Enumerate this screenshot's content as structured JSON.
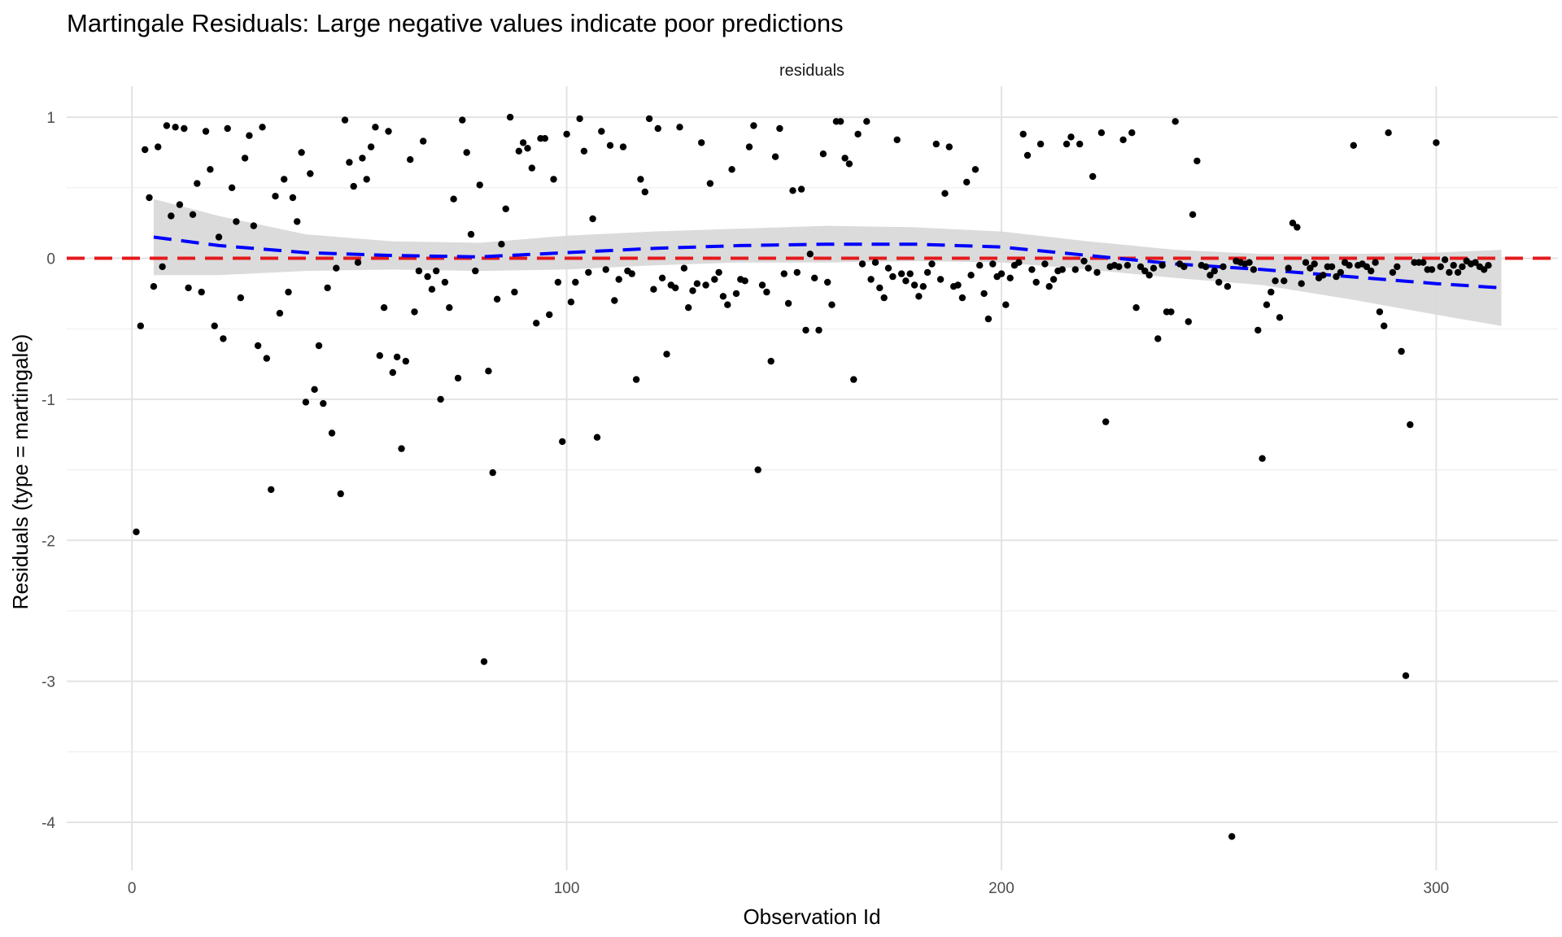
{
  "chart_data": {
    "type": "scatter",
    "title": "Martingale Residuals: Large negative values indicate poor predictions",
    "facet_label": "residuals",
    "xlabel": "Observation Id",
    "ylabel": "Residuals (type = martingale)",
    "xlim": [
      -15,
      328
    ],
    "ylim": [
      -4.34,
      1.22
    ],
    "x_ticks": [
      0,
      100,
      200,
      300
    ],
    "y_ticks": [
      1,
      0,
      -1,
      -2,
      -3,
      -4
    ],
    "x_tick_labels": [
      "0",
      "100",
      "200",
      "300"
    ],
    "y_tick_labels": [
      "1",
      "0",
      "-1",
      "-2",
      "-3",
      "-4"
    ],
    "grid": true,
    "reference_line": {
      "y": 0,
      "color": "#e41a1c",
      "style": "dashed"
    },
    "smooth": {
      "color": "#0000ff",
      "style": "dashed",
      "band_color": "#d9d9d9",
      "fit": [
        [
          5,
          0.15
        ],
        [
          20,
          0.09
        ],
        [
          40,
          0.04
        ],
        [
          60,
          0.02
        ],
        [
          80,
          0.01
        ],
        [
          100,
          0.04
        ],
        [
          120,
          0.07
        ],
        [
          140,
          0.09
        ],
        [
          160,
          0.1
        ],
        [
          180,
          0.1
        ],
        [
          200,
          0.08
        ],
        [
          220,
          0.02
        ],
        [
          240,
          -0.04
        ],
        [
          260,
          -0.08
        ],
        [
          280,
          -0.13
        ],
        [
          300,
          -0.18
        ],
        [
          315,
          -0.21
        ]
      ],
      "upper": [
        [
          5,
          0.42
        ],
        [
          20,
          0.3
        ],
        [
          40,
          0.17
        ],
        [
          60,
          0.12
        ],
        [
          80,
          0.11
        ],
        [
          100,
          0.16
        ],
        [
          120,
          0.19
        ],
        [
          140,
          0.21
        ],
        [
          160,
          0.23
        ],
        [
          180,
          0.22
        ],
        [
          200,
          0.19
        ],
        [
          220,
          0.12
        ],
        [
          240,
          0.06
        ],
        [
          260,
          0.03
        ],
        [
          280,
          0.03
        ],
        [
          300,
          0.04
        ],
        [
          315,
          0.06
        ]
      ],
      "lower": [
        [
          5,
          -0.12
        ],
        [
          20,
          -0.12
        ],
        [
          40,
          -0.09
        ],
        [
          60,
          -0.08
        ],
        [
          80,
          -0.09
        ],
        [
          100,
          -0.08
        ],
        [
          120,
          -0.05
        ],
        [
          140,
          -0.03
        ],
        [
          160,
          -0.03
        ],
        [
          180,
          -0.02
        ],
        [
          200,
          -0.03
        ],
        [
          220,
          -0.08
        ],
        [
          240,
          -0.14
        ],
        [
          260,
          -0.19
        ],
        [
          280,
          -0.29
        ],
        [
          300,
          -0.4
        ],
        [
          315,
          -0.48
        ]
      ]
    },
    "points": [
      [
        1,
        -1.94
      ],
      [
        2,
        -0.48
      ],
      [
        3,
        0.77
      ],
      [
        4,
        0.43
      ],
      [
        5,
        -0.2
      ],
      [
        6,
        0.79
      ],
      [
        7,
        -0.06
      ],
      [
        8,
        0.94
      ],
      [
        9,
        0.3
      ],
      [
        10,
        0.93
      ],
      [
        11,
        0.38
      ],
      [
        12,
        0.92
      ],
      [
        13,
        -0.21
      ],
      [
        14,
        0.31
      ],
      [
        15,
        0.53
      ],
      [
        16,
        -0.24
      ],
      [
        17,
        0.9
      ],
      [
        18,
        0.63
      ],
      [
        19,
        -0.48
      ],
      [
        20,
        0.15
      ],
      [
        21,
        -0.57
      ],
      [
        22,
        0.92
      ],
      [
        23,
        0.5
      ],
      [
        24,
        0.26
      ],
      [
        25,
        -0.28
      ],
      [
        26,
        0.71
      ],
      [
        27,
        0.87
      ],
      [
        28,
        0.23
      ],
      [
        29,
        -0.62
      ],
      [
        30,
        0.93
      ],
      [
        31,
        -0.71
      ],
      [
        32,
        -1.64
      ],
      [
        33,
        0.44
      ],
      [
        34,
        -0.39
      ],
      [
        35,
        0.56
      ],
      [
        36,
        -0.24
      ],
      [
        37,
        0.43
      ],
      [
        38,
        0.26
      ],
      [
        39,
        0.75
      ],
      [
        40,
        -1.02
      ],
      [
        41,
        0.6
      ],
      [
        42,
        -0.93
      ],
      [
        43,
        -0.62
      ],
      [
        44,
        -1.03
      ],
      [
        45,
        -0.21
      ],
      [
        46,
        -1.24
      ],
      [
        47,
        -0.07
      ],
      [
        48,
        -1.67
      ],
      [
        49,
        0.98
      ],
      [
        50,
        0.68
      ],
      [
        51,
        0.51
      ],
      [
        52,
        -0.03
      ],
      [
        53,
        0.71
      ],
      [
        54,
        0.56
      ],
      [
        55,
        0.79
      ],
      [
        56,
        0.93
      ],
      [
        57,
        -0.69
      ],
      [
        58,
        -0.35
      ],
      [
        59,
        0.9
      ],
      [
        60,
        -0.81
      ],
      [
        61,
        -0.7
      ],
      [
        62,
        -1.35
      ],
      [
        63,
        -0.73
      ],
      [
        64,
        0.7
      ],
      [
        65,
        -0.38
      ],
      [
        66,
        -0.09
      ],
      [
        67,
        0.83
      ],
      [
        68,
        -0.13
      ],
      [
        69,
        -0.22
      ],
      [
        70,
        -0.09
      ],
      [
        71,
        -1.0
      ],
      [
        72,
        -0.17
      ],
      [
        73,
        -0.35
      ],
      [
        74,
        0.42
      ],
      [
        75,
        -0.85
      ],
      [
        76,
        0.98
      ],
      [
        77,
        0.75
      ],
      [
        78,
        0.17
      ],
      [
        79,
        -0.09
      ],
      [
        80,
        0.52
      ],
      [
        81,
        -2.86
      ],
      [
        82,
        -0.8
      ],
      [
        83,
        -1.52
      ],
      [
        84,
        -0.29
      ],
      [
        85,
        0.1
      ],
      [
        86,
        0.35
      ],
      [
        87,
        1.0
      ],
      [
        88,
        -0.24
      ],
      [
        89,
        0.76
      ],
      [
        90,
        0.82
      ],
      [
        91,
        0.78
      ],
      [
        92,
        0.64
      ],
      [
        93,
        -0.46
      ],
      [
        94,
        0.85
      ],
      [
        95,
        0.85
      ],
      [
        96,
        -0.4
      ],
      [
        97,
        0.56
      ],
      [
        98,
        -0.17
      ],
      [
        99,
        -1.3
      ],
      [
        100,
        0.88
      ],
      [
        101,
        -0.31
      ],
      [
        102,
        -0.17
      ],
      [
        103,
        0.99
      ],
      [
        104,
        0.76
      ],
      [
        105,
        -0.1
      ],
      [
        106,
        0.28
      ],
      [
        107,
        -1.27
      ],
      [
        108,
        0.9
      ],
      [
        109,
        -0.08
      ],
      [
        110,
        0.8
      ],
      [
        111,
        -0.3
      ],
      [
        112,
        -0.15
      ],
      [
        113,
        0.79
      ],
      [
        114,
        -0.09
      ],
      [
        115,
        -0.11
      ],
      [
        116,
        -0.86
      ],
      [
        117,
        0.56
      ],
      [
        118,
        0.47
      ],
      [
        119,
        0.99
      ],
      [
        120,
        -0.22
      ],
      [
        121,
        0.92
      ],
      [
        122,
        -0.14
      ],
      [
        123,
        -0.68
      ],
      [
        124,
        -0.19
      ],
      [
        125,
        -0.21
      ],
      [
        126,
        0.93
      ],
      [
        127,
        -0.07
      ],
      [
        128,
        -0.35
      ],
      [
        129,
        -0.23
      ],
      [
        130,
        -0.18
      ],
      [
        131,
        0.82
      ],
      [
        132,
        -0.19
      ],
      [
        133,
        0.53
      ],
      [
        134,
        -0.15
      ],
      [
        135,
        -0.1
      ],
      [
        136,
        -0.27
      ],
      [
        137,
        -0.33
      ],
      [
        138,
        0.63
      ],
      [
        139,
        -0.25
      ],
      [
        140,
        -0.15
      ],
      [
        141,
        -0.16
      ],
      [
        142,
        0.79
      ],
      [
        143,
        0.94
      ],
      [
        144,
        -1.5
      ],
      [
        145,
        -0.19
      ],
      [
        146,
        -0.24
      ],
      [
        147,
        -0.73
      ],
      [
        148,
        0.72
      ],
      [
        149,
        0.92
      ],
      [
        150,
        -0.11
      ],
      [
        151,
        -0.32
      ],
      [
        152,
        0.48
      ],
      [
        153,
        -0.1
      ],
      [
        154,
        0.49
      ],
      [
        155,
        -0.51
      ],
      [
        156,
        0.03
      ],
      [
        157,
        -0.14
      ],
      [
        158,
        -0.51
      ],
      [
        159,
        0.74
      ],
      [
        160,
        -0.17
      ],
      [
        161,
        -0.33
      ],
      [
        162,
        0.97
      ],
      [
        163,
        0.97
      ],
      [
        164,
        0.71
      ],
      [
        165,
        0.67
      ],
      [
        166,
        -0.86
      ],
      [
        167,
        0.88
      ],
      [
        168,
        -0.04
      ],
      [
        169,
        0.97
      ],
      [
        170,
        -0.15
      ],
      [
        171,
        -0.03
      ],
      [
        172,
        -0.21
      ],
      [
        173,
        -0.28
      ],
      [
        174,
        -0.07
      ],
      [
        175,
        -0.13
      ],
      [
        176,
        0.84
      ],
      [
        177,
        -0.11
      ],
      [
        178,
        -0.16
      ],
      [
        179,
        -0.11
      ],
      [
        180,
        -0.19
      ],
      [
        181,
        -0.27
      ],
      [
        182,
        -0.2
      ],
      [
        183,
        -0.1
      ],
      [
        184,
        -0.04
      ],
      [
        185,
        0.81
      ],
      [
        186,
        -0.15
      ],
      [
        187,
        0.46
      ],
      [
        188,
        0.79
      ],
      [
        189,
        -0.2
      ],
      [
        190,
        -0.19
      ],
      [
        191,
        -0.28
      ],
      [
        192,
        0.54
      ],
      [
        193,
        -0.12
      ],
      [
        194,
        0.63
      ],
      [
        195,
        -0.05
      ],
      [
        196,
        -0.25
      ],
      [
        197,
        -0.43
      ],
      [
        198,
        -0.04
      ],
      [
        199,
        -0.13
      ],
      [
        200,
        -0.11
      ],
      [
        201,
        -0.33
      ],
      [
        202,
        -0.14
      ],
      [
        203,
        -0.05
      ],
      [
        204,
        -0.03
      ],
      [
        205,
        0.88
      ],
      [
        206,
        0.73
      ],
      [
        207,
        -0.08
      ],
      [
        208,
        -0.17
      ],
      [
        209,
        0.81
      ],
      [
        210,
        -0.04
      ],
      [
        211,
        -0.2
      ],
      [
        212,
        -0.15
      ],
      [
        213,
        -0.09
      ],
      [
        214,
        -0.08
      ],
      [
        215,
        0.81
      ],
      [
        216,
        0.86
      ],
      [
        217,
        -0.08
      ],
      [
        218,
        0.81
      ],
      [
        219,
        -0.02
      ],
      [
        220,
        -0.07
      ],
      [
        221,
        0.58
      ],
      [
        222,
        -0.1
      ],
      [
        223,
        0.89
      ],
      [
        224,
        -1.16
      ],
      [
        225,
        -0.06
      ],
      [
        226,
        -0.05
      ],
      [
        227,
        -0.06
      ],
      [
        228,
        0.84
      ],
      [
        229,
        -0.05
      ],
      [
        230,
        0.89
      ],
      [
        231,
        -0.35
      ],
      [
        232,
        -0.06
      ],
      [
        233,
        -0.09
      ],
      [
        234,
        -0.12
      ],
      [
        235,
        -0.07
      ],
      [
        236,
        -0.57
      ],
      [
        237,
        -0.05
      ],
      [
        238,
        -0.38
      ],
      [
        239,
        -0.38
      ],
      [
        240,
        0.97
      ],
      [
        241,
        -0.04
      ],
      [
        242,
        -0.06
      ],
      [
        243,
        -0.45
      ],
      [
        244,
        0.31
      ],
      [
        245,
        0.69
      ],
      [
        246,
        -0.05
      ],
      [
        247,
        -0.06
      ],
      [
        248,
        -0.12
      ],
      [
        249,
        -0.09
      ],
      [
        250,
        -0.17
      ],
      [
        251,
        -0.06
      ],
      [
        252,
        -0.2
      ],
      [
        253,
        -4.1
      ],
      [
        254,
        -0.02
      ],
      [
        255,
        -0.03
      ],
      [
        256,
        -0.04
      ],
      [
        257,
        -0.03
      ],
      [
        258,
        -0.08
      ],
      [
        259,
        -0.51
      ],
      [
        260,
        -1.42
      ],
      [
        261,
        -0.33
      ],
      [
        262,
        -0.24
      ],
      [
        263,
        -0.16
      ],
      [
        264,
        -0.42
      ],
      [
        265,
        -0.16
      ],
      [
        266,
        -0.07
      ],
      [
        267,
        0.25
      ],
      [
        268,
        0.22
      ],
      [
        269,
        -0.18
      ],
      [
        270,
        -0.03
      ],
      [
        271,
        -0.07
      ],
      [
        272,
        -0.04
      ],
      [
        273,
        -0.14
      ],
      [
        274,
        -0.12
      ],
      [
        275,
        -0.06
      ],
      [
        276,
        -0.06
      ],
      [
        277,
        -0.13
      ],
      [
        278,
        -0.1
      ],
      [
        279,
        -0.03
      ],
      [
        280,
        -0.05
      ],
      [
        281,
        0.8
      ],
      [
        282,
        -0.05
      ],
      [
        283,
        -0.04
      ],
      [
        284,
        -0.06
      ],
      [
        285,
        -0.09
      ],
      [
        286,
        -0.03
      ],
      [
        287,
        -0.38
      ],
      [
        288,
        -0.48
      ],
      [
        289,
        0.89
      ],
      [
        290,
        -0.1
      ],
      [
        291,
        -0.06
      ],
      [
        292,
        -0.66
      ],
      [
        293,
        -2.96
      ],
      [
        294,
        -1.18
      ],
      [
        295,
        -0.03
      ],
      [
        296,
        -0.03
      ],
      [
        297,
        -0.03
      ],
      [
        298,
        -0.08
      ],
      [
        299,
        -0.08
      ],
      [
        300,
        0.82
      ],
      [
        301,
        -0.06
      ],
      [
        302,
        -0.01
      ],
      [
        303,
        -0.1
      ],
      [
        304,
        -0.05
      ],
      [
        305,
        -0.1
      ],
      [
        306,
        -0.06
      ],
      [
        307,
        -0.02
      ],
      [
        308,
        -0.04
      ],
      [
        309,
        -0.03
      ],
      [
        310,
        -0.06
      ],
      [
        311,
        -0.08
      ],
      [
        312,
        -0.05
      ]
    ]
  }
}
